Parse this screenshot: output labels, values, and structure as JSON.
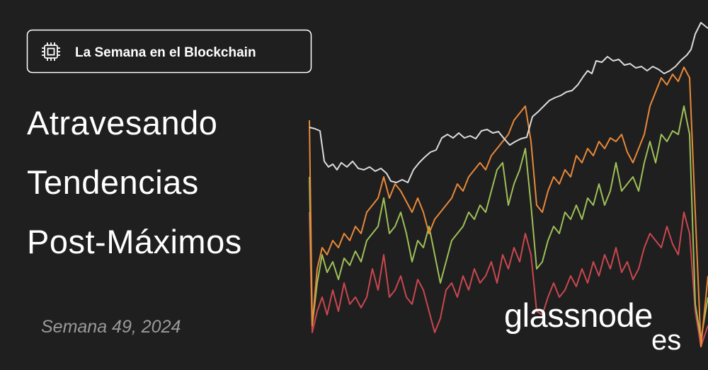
{
  "badge": {
    "label": "La Semana en el Blockchain"
  },
  "title": {
    "lines": [
      "Atravesando",
      "Tendencias",
      "Post-Máximos"
    ]
  },
  "subtitle": "Semana 49, 2024",
  "logo": {
    "brand": "glassnode",
    "suffix": "es"
  }
}
